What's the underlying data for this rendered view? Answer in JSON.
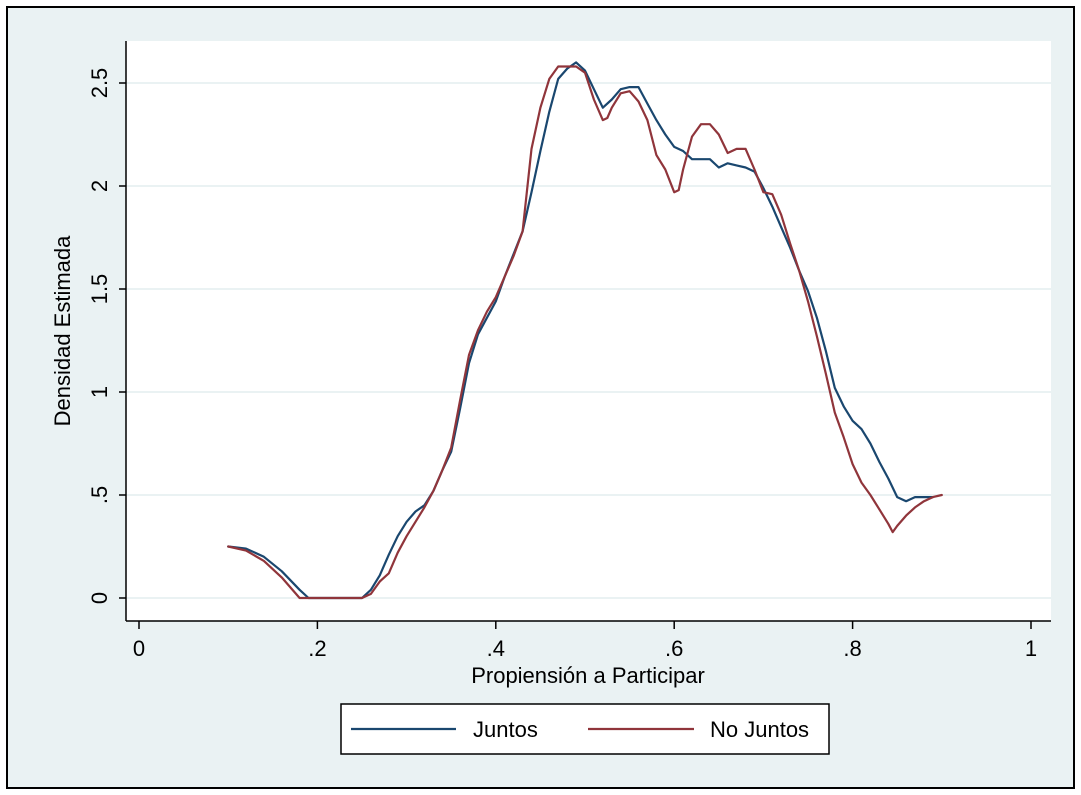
{
  "chart_data": {
    "type": "line",
    "title": "",
    "xlabel": "Propiensión a Participar",
    "ylabel": "Densidad Estimada",
    "xlim": [
      0,
      1
    ],
    "ylim": [
      0,
      2.5
    ],
    "x_ticks": [
      0,
      0.2,
      0.4,
      0.6,
      0.8,
      1
    ],
    "x_tick_labels": [
      "0",
      ".2",
      ".4",
      ".6",
      ".8",
      "1"
    ],
    "y_ticks": [
      0,
      0.5,
      1,
      1.5,
      2,
      2.5
    ],
    "y_tick_labels": [
      "0",
      ".5",
      "1",
      "1.5",
      "2",
      "2.5"
    ],
    "grid": true,
    "legend_position": "bottom",
    "series": [
      {
        "name": "Juntos",
        "color": "#1a476f",
        "x": [
          0.1,
          0.12,
          0.14,
          0.16,
          0.18,
          0.19,
          0.2,
          0.22,
          0.24,
          0.25,
          0.26,
          0.27,
          0.28,
          0.29,
          0.3,
          0.31,
          0.32,
          0.33,
          0.34,
          0.35,
          0.36,
          0.37,
          0.38,
          0.39,
          0.4,
          0.41,
          0.42,
          0.43,
          0.44,
          0.45,
          0.46,
          0.47,
          0.48,
          0.49,
          0.5,
          0.51,
          0.52,
          0.53,
          0.54,
          0.55,
          0.56,
          0.57,
          0.58,
          0.59,
          0.6,
          0.61,
          0.62,
          0.63,
          0.64,
          0.65,
          0.66,
          0.67,
          0.68,
          0.69,
          0.7,
          0.71,
          0.72,
          0.73,
          0.74,
          0.75,
          0.76,
          0.77,
          0.78,
          0.79,
          0.8,
          0.81,
          0.82,
          0.83,
          0.84,
          0.85,
          0.86,
          0.87,
          0.88,
          0.89
        ],
        "y": [
          0.25,
          0.24,
          0.2,
          0.13,
          0.04,
          0.0,
          0.0,
          0.0,
          0.0,
          0.0,
          0.04,
          0.11,
          0.21,
          0.3,
          0.37,
          0.42,
          0.45,
          0.52,
          0.62,
          0.71,
          0.92,
          1.14,
          1.28,
          1.36,
          1.44,
          1.56,
          1.67,
          1.78,
          1.97,
          2.17,
          2.36,
          2.52,
          2.57,
          2.6,
          2.56,
          2.47,
          2.38,
          2.42,
          2.47,
          2.48,
          2.48,
          2.4,
          2.32,
          2.25,
          2.19,
          2.17,
          2.13,
          2.13,
          2.13,
          2.09,
          2.11,
          2.1,
          2.09,
          2.07,
          1.99,
          1.9,
          1.8,
          1.7,
          1.59,
          1.49,
          1.36,
          1.2,
          1.02,
          0.93,
          0.86,
          0.82,
          0.75,
          0.66,
          0.58,
          0.49,
          0.47,
          0.49,
          0.49,
          0.49
        ]
      },
      {
        "name": "No Juntos",
        "color": "#90353b",
        "x": [
          0.1,
          0.12,
          0.14,
          0.16,
          0.18,
          0.19,
          0.2,
          0.22,
          0.24,
          0.25,
          0.26,
          0.27,
          0.28,
          0.29,
          0.3,
          0.31,
          0.32,
          0.33,
          0.34,
          0.35,
          0.36,
          0.37,
          0.38,
          0.39,
          0.4,
          0.41,
          0.42,
          0.43,
          0.44,
          0.45,
          0.46,
          0.47,
          0.48,
          0.49,
          0.5,
          0.51,
          0.52,
          0.525,
          0.53,
          0.54,
          0.55,
          0.56,
          0.57,
          0.58,
          0.59,
          0.6,
          0.605,
          0.61,
          0.62,
          0.63,
          0.64,
          0.65,
          0.66,
          0.67,
          0.68,
          0.69,
          0.7,
          0.71,
          0.72,
          0.73,
          0.74,
          0.75,
          0.76,
          0.77,
          0.78,
          0.79,
          0.8,
          0.81,
          0.82,
          0.83,
          0.84,
          0.845,
          0.85,
          0.86,
          0.87,
          0.88,
          0.89,
          0.9
        ],
        "y": [
          0.25,
          0.23,
          0.18,
          0.1,
          0.0,
          0.0,
          0.0,
          0.0,
          0.0,
          0.0,
          0.02,
          0.08,
          0.12,
          0.22,
          0.3,
          0.37,
          0.44,
          0.52,
          0.62,
          0.73,
          0.96,
          1.18,
          1.3,
          1.39,
          1.46,
          1.56,
          1.66,
          1.78,
          2.18,
          2.38,
          2.52,
          2.58,
          2.58,
          2.58,
          2.55,
          2.42,
          2.32,
          2.33,
          2.38,
          2.45,
          2.46,
          2.41,
          2.32,
          2.15,
          2.08,
          1.97,
          1.98,
          2.08,
          2.24,
          2.3,
          2.3,
          2.25,
          2.16,
          2.18,
          2.18,
          2.08,
          1.97,
          1.96,
          1.86,
          1.72,
          1.59,
          1.44,
          1.27,
          1.09,
          0.9,
          0.78,
          0.65,
          0.56,
          0.5,
          0.43,
          0.36,
          0.32,
          0.35,
          0.4,
          0.44,
          0.47,
          0.49,
          0.5
        ]
      }
    ]
  }
}
